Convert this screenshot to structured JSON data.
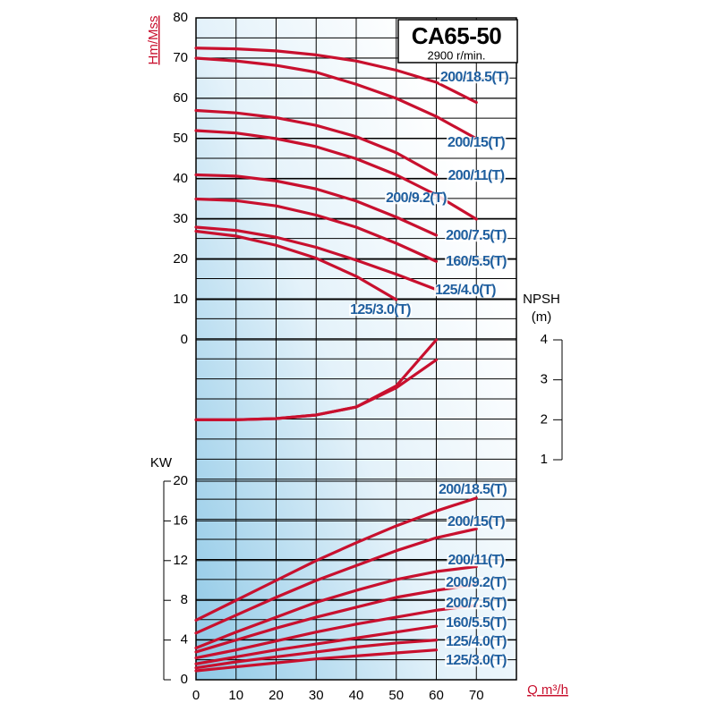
{
  "chart_data": [
    {
      "type": "line",
      "title": "CA65-50",
      "subtitle": "2900 r/min.",
      "y_label": "Hm/Mss",
      "x": [
        0,
        10,
        20,
        30,
        40,
        50,
        60,
        70
      ],
      "xlim": [
        0,
        80
      ],
      "ylim": [
        0,
        80
      ],
      "yticks": [
        0,
        10,
        20,
        30,
        40,
        50,
        60,
        70,
        80
      ],
      "grid": true,
      "color": "#c8102e",
      "series": [
        {
          "name": "200/18.5(T)",
          "values": [
            72.5,
            72.3,
            71.8,
            70.8,
            69.3,
            67,
            64,
            59
          ]
        },
        {
          "name": "200/15(T)",
          "values": [
            70,
            69.3,
            68.2,
            66.5,
            63.5,
            60,
            55.5,
            50
          ]
        },
        {
          "name": "200/11(T)",
          "values": [
            57,
            56.4,
            55.2,
            53.3,
            50.5,
            46.5,
            41,
            null
          ]
        },
        {
          "name": "200/9.2(T)",
          "values": [
            52,
            51.4,
            50,
            48,
            45,
            41,
            36,
            30
          ]
        },
        {
          "name": "200/7.5(T)",
          "values": [
            41,
            40.7,
            39.5,
            37.5,
            34.5,
            30.5,
            26,
            null
          ]
        },
        {
          "name": "160/5.5(T)",
          "values": [
            35,
            34.6,
            33.3,
            31,
            28,
            24,
            19.5,
            null
          ]
        },
        {
          "name": "125/4.0(T)",
          "values": [
            28,
            27.2,
            25.5,
            23,
            19.8,
            16.3,
            12.5,
            null
          ]
        },
        {
          "name": "125/3.0(T)",
          "values": [
            27,
            25.8,
            23.5,
            20.3,
            15.8,
            10,
            null,
            null
          ]
        }
      ]
    },
    {
      "type": "line",
      "y_label": [
        "NPSH",
        "(m)"
      ],
      "x": [
        0,
        10,
        20,
        30,
        40,
        50,
        60
      ],
      "xlim": [
        0,
        80
      ],
      "ylim": [
        1,
        4
      ],
      "yticks": [
        1,
        2,
        3,
        4
      ],
      "color": "#c8102e",
      "series": [
        {
          "values": [
            2,
            2,
            2.03,
            2.12,
            2.32,
            2.85,
            4
          ]
        },
        {
          "values": [
            2,
            2,
            2.03,
            2.12,
            2.32,
            2.8,
            3.5
          ]
        }
      ]
    },
    {
      "type": "line",
      "y_label": "KW",
      "x_label": "Q m³/h",
      "x": [
        0,
        10,
        20,
        30,
        40,
        50,
        60,
        70
      ],
      "xlim": [
        0,
        80
      ],
      "xticks": [
        0,
        10,
        20,
        30,
        40,
        50,
        60,
        70
      ],
      "ylim": [
        0,
        20
      ],
      "yticks": [
        0,
        4,
        8,
        12,
        16,
        20
      ],
      "grid": true,
      "color": "#c8102e",
      "series": [
        {
          "name": "200/18.5(T)",
          "values": [
            6,
            8,
            10,
            12,
            13.8,
            15.5,
            17,
            18.3
          ]
        },
        {
          "name": "200/15(T)",
          "values": [
            4.7,
            6.5,
            8.3,
            10,
            11.5,
            13,
            14.3,
            15.2
          ]
        },
        {
          "name": "200/11(T)",
          "values": [
            3.2,
            4.8,
            6.3,
            7.8,
            9,
            10.1,
            10.9,
            11.4
          ]
        },
        {
          "name": "200/9.2(T)",
          "values": [
            2.8,
            4,
            5.2,
            6.3,
            7.3,
            8.3,
            9,
            9.6
          ]
        },
        {
          "name": "200/7.5(T)",
          "values": [
            2.2,
            3,
            3.9,
            4.8,
            5.6,
            6.3,
            7,
            7.5
          ]
        },
        {
          "name": "160/5.5(T)",
          "values": [
            1.6,
            2.3,
            3,
            3.6,
            4.2,
            4.8,
            5.4,
            null
          ]
        },
        {
          "name": "125/4.0(T)",
          "values": [
            1.2,
            1.8,
            2.3,
            2.8,
            3.3,
            3.7,
            4,
            null
          ]
        },
        {
          "name": "125/3.0(T)",
          "values": [
            0.9,
            1.3,
            1.7,
            2.1,
            2.4,
            2.7,
            3,
            null
          ]
        }
      ]
    }
  ]
}
